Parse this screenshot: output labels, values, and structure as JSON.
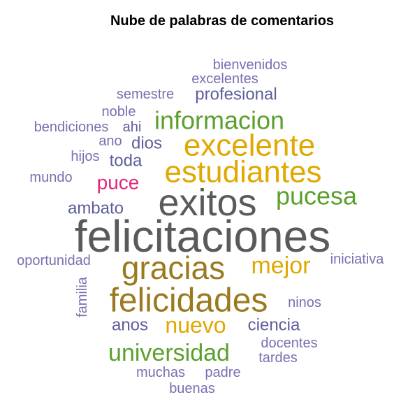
{
  "chart_data": {
    "type": "wordcloud",
    "title": "Nube de palabras de comentarios",
    "words": [
      {
        "text": "bienvenidos",
        "color": "#7b6fb0"
      },
      {
        "text": "excelentes",
        "color": "#7b6fb0"
      },
      {
        "text": "semestre",
        "color": "#7b6fb0"
      },
      {
        "text": "profesional",
        "color": "#5d5d9b"
      },
      {
        "text": "noble",
        "color": "#7b6fb0"
      },
      {
        "text": "bendiciones",
        "color": "#7b6fb0"
      },
      {
        "text": "ahi",
        "color": "#5d5d9b"
      },
      {
        "text": "informacion",
        "color": "#5aa02c"
      },
      {
        "text": "ano",
        "color": "#7b6fb0"
      },
      {
        "text": "dios",
        "color": "#5d5d9b"
      },
      {
        "text": "excelente",
        "color": "#e0a800"
      },
      {
        "text": "hijos",
        "color": "#7b6fb0"
      },
      {
        "text": "toda",
        "color": "#5d5d9b"
      },
      {
        "text": "estudiantes",
        "color": "#e0a800"
      },
      {
        "text": "mundo",
        "color": "#7b6fb0"
      },
      {
        "text": "puce",
        "color": "#e0287a"
      },
      {
        "text": "exitos",
        "color": "#5a5a5a"
      },
      {
        "text": "pucesa",
        "color": "#5aa02c"
      },
      {
        "text": "ambato",
        "color": "#5d5d9b"
      },
      {
        "text": "felicitaciones",
        "color": "#5a5a5a"
      },
      {
        "text": "oportunidad",
        "color": "#7b6fb0"
      },
      {
        "text": "gracias",
        "color": "#9b7a1f"
      },
      {
        "text": "mejor",
        "color": "#e0a800"
      },
      {
        "text": "iniciativa",
        "color": "#7b6fb0"
      },
      {
        "text": "familia",
        "color": "#7b6fb0"
      },
      {
        "text": "felicidades",
        "color": "#9b7a1f"
      },
      {
        "text": "ninos",
        "color": "#7b6fb0"
      },
      {
        "text": "anos",
        "color": "#5d5d9b"
      },
      {
        "text": "nuevo",
        "color": "#e0a800"
      },
      {
        "text": "ciencia",
        "color": "#5d5d9b"
      },
      {
        "text": "docentes",
        "color": "#7b6fb0"
      },
      {
        "text": "universidad",
        "color": "#5aa02c"
      },
      {
        "text": "tardes",
        "color": "#7b6fb0"
      },
      {
        "text": "muchas",
        "color": "#7b6fb0"
      },
      {
        "text": "padre",
        "color": "#7b6fb0"
      },
      {
        "text": "buenas",
        "color": "#7b6fb0"
      }
    ]
  }
}
